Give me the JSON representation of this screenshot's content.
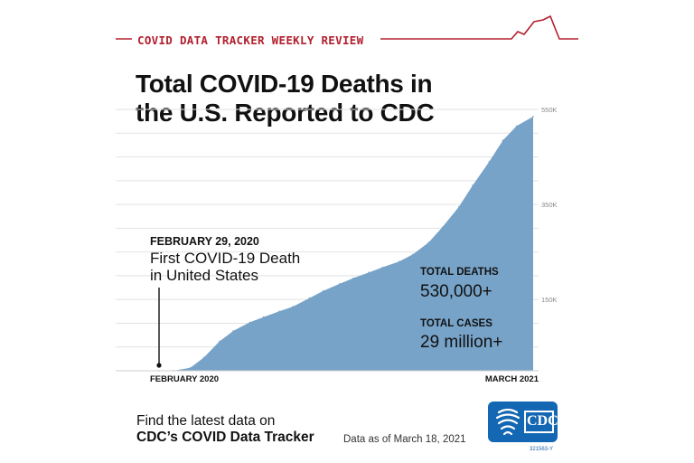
{
  "header": {
    "banner": "COVID DATA TRACKER WEEKLY REVIEW"
  },
  "title": {
    "line1": "Total COVID-19 Deaths in",
    "line2": "the U.S. Reported to CDC"
  },
  "annotation": {
    "date": "FEBRUARY 29, 2020",
    "line1": "First COVID-19 Death",
    "line2": "in United States"
  },
  "stats": {
    "deaths_label": "TOTAL DEATHS",
    "deaths_value": "530,000+",
    "cases_label": "TOTAL CASES",
    "cases_value": "29 million+"
  },
  "footer": {
    "line1": "Find the latest data on",
    "line2": "CDC’s COVID Data Tracker",
    "asof": "Data as of March 18, 2021",
    "logo_text": "CDC",
    "logo_id": "321563-Y"
  },
  "colors": {
    "area": "#77a3c8",
    "accent": "#b2202e",
    "grid": "#e2e2e2",
    "logo": "#1467b3"
  },
  "chart_data": {
    "type": "area",
    "title": "Total COVID-19 Deaths in the U.S. Reported to CDC",
    "xlabel": "",
    "ylabel": "",
    "x_tick_labels": [
      "FEBRUARY 2020",
      "MARCH 2021"
    ],
    "y_ticks": [
      150000,
      350000,
      550000
    ],
    "y_tick_labels": [
      "150K",
      "350K",
      "550K"
    ],
    "ylim": [
      0,
      550000
    ],
    "grid": true,
    "series": [
      {
        "x": [
          "2020-02-29",
          "2020-03-15",
          "2020-04-01",
          "2020-04-15",
          "2020-05-01",
          "2020-05-15",
          "2020-06-01",
          "2020-06-15",
          "2020-07-01",
          "2020-07-15",
          "2020-08-01",
          "2020-08-15",
          "2020-09-01",
          "2020-09-15",
          "2020-10-01",
          "2020-10-15",
          "2020-11-01",
          "2020-11-15",
          "2020-12-01",
          "2020-12-15",
          "2021-01-01",
          "2021-01-15",
          "2021-02-01",
          "2021-02-15",
          "2021-03-01",
          "2021-03-18"
        ],
        "values": [
          0,
          200,
          6000,
          28000,
          62000,
          84000,
          102000,
          113000,
          125000,
          135000,
          153000,
          168000,
          183000,
          195000,
          207000,
          218000,
          230000,
          245000,
          270000,
          302000,
          345000,
          390000,
          440000,
          485000,
          515000,
          535000
        ]
      }
    ],
    "annotations": [
      {
        "x": "2020-02-29",
        "text": "First COVID-19 Death in United States"
      }
    ]
  }
}
